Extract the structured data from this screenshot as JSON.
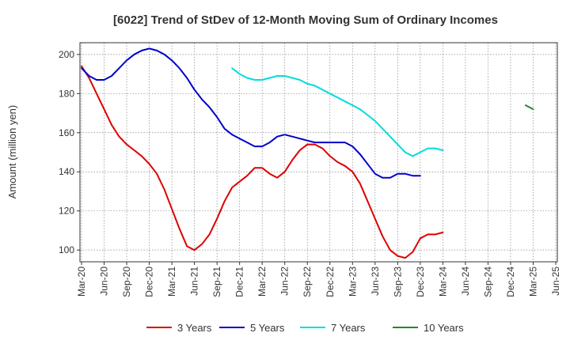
{
  "chart_data": {
    "type": "line",
    "title": "[6022]  Trend of StDev of 12-Month Moving Sum of Ordinary Incomes",
    "xlabel": "",
    "ylabel": "Amount (million yen)",
    "ylim": [
      94,
      206
    ],
    "yticks": [
      100,
      120,
      140,
      160,
      180,
      200
    ],
    "xlim": [
      0,
      60
    ],
    "xticks": [
      {
        "pos": 0,
        "label": "Mar-20"
      },
      {
        "pos": 3,
        "label": "Jun-20"
      },
      {
        "pos": 6,
        "label": "Sep-20"
      },
      {
        "pos": 9,
        "label": "Dec-20"
      },
      {
        "pos": 12,
        "label": "Mar-21"
      },
      {
        "pos": 15,
        "label": "Jun-21"
      },
      {
        "pos": 18,
        "label": "Sep-21"
      },
      {
        "pos": 21,
        "label": "Dec-21"
      },
      {
        "pos": 24,
        "label": "Mar-22"
      },
      {
        "pos": 27,
        "label": "Jun-22"
      },
      {
        "pos": 30,
        "label": "Sep-22"
      },
      {
        "pos": 33,
        "label": "Dec-22"
      },
      {
        "pos": 36,
        "label": "Mar-23"
      },
      {
        "pos": 39,
        "label": "Jun-23"
      },
      {
        "pos": 42,
        "label": "Sep-23"
      },
      {
        "pos": 45,
        "label": "Dec-23"
      },
      {
        "pos": 48,
        "label": "Mar-24"
      },
      {
        "pos": 51,
        "label": "Jun-24"
      },
      {
        "pos": 54,
        "label": "Sep-24"
      },
      {
        "pos": 57,
        "label": "Dec-24"
      },
      {
        "pos": 60,
        "label": "Mar-25"
      },
      {
        "pos": 63,
        "label": "Jun-25"
      }
    ],
    "grid": true,
    "legend_position": "bottom",
    "series": [
      {
        "name": "3 Years",
        "color": "#dd0000",
        "start": 0,
        "values": [
          194,
          188,
          180,
          172,
          164,
          158,
          154,
          151,
          148,
          144,
          139,
          131,
          121,
          111,
          102,
          100,
          103,
          108,
          116,
          125,
          132,
          135,
          138,
          142,
          142,
          139,
          137,
          140,
          146,
          151,
          154,
          154,
          152,
          148,
          145,
          143,
          140,
          134,
          125,
          116,
          107,
          100,
          97,
          96,
          99,
          106,
          108,
          108,
          109
        ]
      },
      {
        "name": "5 Years",
        "color": "#0000cc",
        "start": 0,
        "values": [
          193,
          189,
          187,
          187,
          189,
          193,
          197,
          200,
          202,
          203,
          202,
          200,
          197,
          193,
          188,
          182,
          177,
          173,
          168,
          162,
          159,
          157,
          155,
          153,
          153,
          155,
          158,
          159,
          158,
          157,
          156,
          155,
          155,
          155,
          155,
          155,
          153,
          149,
          144,
          139,
          137,
          137,
          139,
          139,
          138,
          138
        ]
      },
      {
        "name": "7 Years",
        "color": "#00dddd",
        "start": 20,
        "values": [
          193,
          190,
          188,
          187,
          187,
          188,
          189,
          189,
          188,
          187,
          185,
          184,
          182,
          180,
          178,
          176,
          174,
          172,
          169,
          166,
          162,
          158,
          154,
          150,
          148,
          150,
          152,
          152,
          151
        ]
      },
      {
        "name": "10 Years",
        "color": "#228822",
        "start": 59,
        "values": [
          174,
          172
        ]
      }
    ]
  }
}
